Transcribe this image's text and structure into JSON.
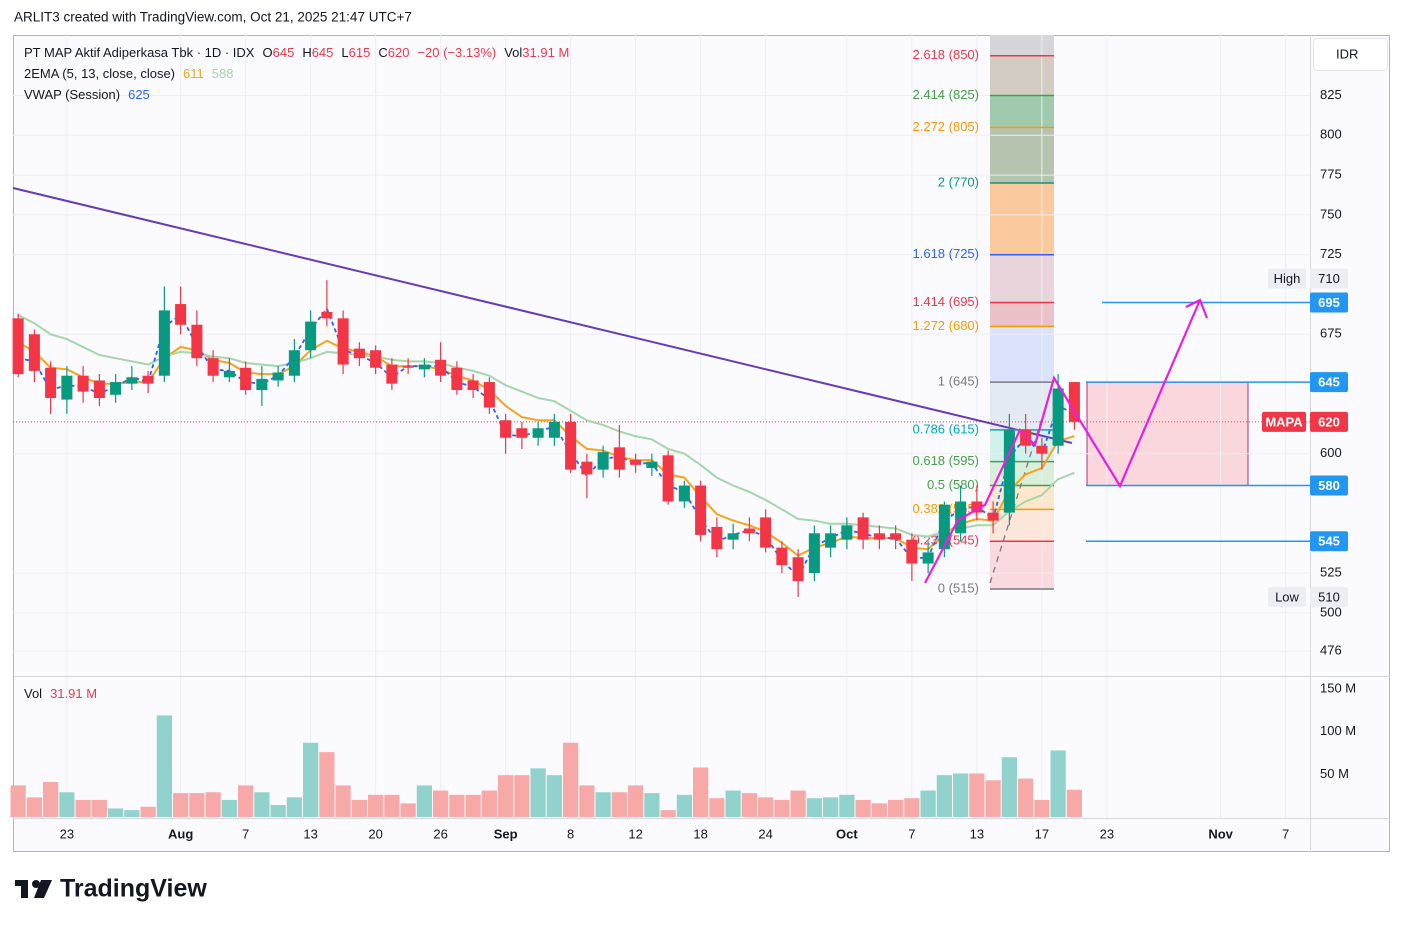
{
  "chart_data": {
    "type": "candlestick",
    "watermark": "ARLIT3 created with TradingView.com, Oct 21, 2025 21:47 UTC+7",
    "brand": "TradingView",
    "currency": "IDR",
    "legend": {
      "symbol": "PT MAP Aktif Adiperkasa Tbk · 1D · IDX",
      "items": [
        {
          "key": "O",
          "value": 645
        },
        {
          "key": "H",
          "value": 645
        },
        {
          "key": "L",
          "value": 615
        },
        {
          "key": "C",
          "value": 620
        }
      ],
      "change": "−20 (−3.13%)",
      "volume_key": "Vol",
      "volume": "31.91 M"
    },
    "up_color": "#089981",
    "down_color": "#f23645",
    "grid": true,
    "ylim": [
      461,
      863
    ],
    "yticks": [
      825,
      800,
      775,
      750,
      725,
      675,
      600,
      525,
      500,
      476
    ],
    "categories": [
      null,
      null,
      null,
      "23",
      null,
      null,
      null,
      null,
      null,
      null,
      "Aug",
      null,
      null,
      null,
      "7",
      null,
      null,
      null,
      "13",
      null,
      null,
      null,
      "20",
      null,
      null,
      null,
      "26",
      null,
      null,
      null,
      "Sep",
      null,
      null,
      null,
      "8",
      null,
      null,
      null,
      "12",
      null,
      null,
      null,
      "18",
      null,
      null,
      null,
      "24",
      null,
      null,
      null,
      null,
      "Oct",
      null,
      null,
      null,
      "7",
      null,
      null,
      null,
      "13",
      null,
      null,
      null,
      "17",
      null,
      null,
      null,
      "23",
      null,
      null,
      null,
      null,
      null,
      null,
      "Nov",
      null,
      null,
      null,
      "7",
      null
    ],
    "ohlc": {
      "open": [
        685,
        675,
        654,
        634,
        649,
        646,
        637,
        644,
        649,
        649,
        694,
        681,
        660,
        648,
        654,
        640,
        646,
        649,
        665,
        689,
        685,
        666,
        665,
        656,
        655,
        653,
        659,
        654,
        646,
        645,
        621,
        616,
        610,
        610,
        620,
        595,
        590,
        604,
        596,
        591,
        599,
        570,
        580,
        554,
        546,
        553,
        560,
        541,
        535,
        525,
        541,
        546,
        560,
        550,
        550,
        546,
        531,
        540,
        550,
        570,
        563,
        563,
        615,
        605,
        605,
        645,
        null,
        null,
        null,
        null,
        null,
        null,
        null,
        null,
        null,
        null,
        null,
        null,
        null,
        null
      ],
      "high": [
        688,
        678,
        658,
        655,
        655,
        650,
        650,
        655,
        652,
        705,
        705,
        690,
        665,
        660,
        658,
        655,
        655,
        672,
        690,
        709,
        690,
        670,
        668,
        660,
        660,
        660,
        670,
        658,
        650,
        648,
        625,
        620,
        620,
        625,
        625,
        600,
        605,
        618,
        600,
        600,
        602,
        583,
        583,
        560,
        556,
        560,
        565,
        545,
        540,
        555,
        555,
        560,
        563,
        555,
        555,
        550,
        545,
        570,
        580,
        580,
        570,
        625,
        625,
        610,
        650,
        645,
        null,
        null,
        null,
        null,
        null,
        null,
        null,
        null,
        null,
        null,
        null,
        null,
        null,
        null
      ],
      "low": [
        648,
        645,
        625,
        625,
        632,
        630,
        632,
        640,
        638,
        645,
        675,
        655,
        645,
        645,
        637,
        630,
        642,
        645,
        660,
        680,
        650,
        655,
        650,
        640,
        650,
        648,
        645,
        637,
        635,
        625,
        600,
        603,
        605,
        605,
        588,
        572,
        585,
        585,
        588,
        586,
        568,
        566,
        545,
        535,
        540,
        545,
        538,
        525,
        510,
        520,
        535,
        540,
        540,
        540,
        540,
        520,
        525,
        535,
        545,
        558,
        550,
        555,
        600,
        590,
        600,
        615,
        null,
        null,
        null,
        null,
        null,
        null,
        null,
        null,
        null,
        null,
        null,
        null,
        null,
        null
      ],
      "close": [
        650,
        652,
        635,
        649,
        639,
        635,
        645,
        648,
        644,
        690,
        681,
        660,
        649,
        652,
        640,
        647,
        651,
        665,
        683,
        685,
        656,
        660,
        654,
        644,
        654,
        656,
        649,
        640,
        640,
        629,
        610,
        610,
        616,
        620,
        590,
        587,
        601,
        590,
        593,
        595,
        570,
        580,
        549,
        540,
        550,
        550,
        541,
        530,
        520,
        550,
        550,
        555,
        546,
        546,
        546,
        531,
        538,
        568,
        570,
        563,
        558,
        615,
        605,
        600,
        641,
        620,
        null,
        null,
        null,
        null,
        null,
        null,
        null,
        null,
        null,
        null,
        null,
        null,
        null,
        null
      ]
    },
    "volume": {
      "name": "Vol",
      "up_color": "#92d2cc",
      "down_color": "#f7a9a7",
      "ylim": [
        0,
        164
      ],
      "yticks": [
        {
          "value": 150,
          "label": "150 M"
        },
        {
          "value": 100,
          "label": "100 M"
        },
        {
          "value": 50,
          "label": "50 M"
        }
      ],
      "values": [
        37,
        23,
        41,
        29,
        20,
        20,
        10,
        8,
        12,
        119,
        28,
        28,
        29,
        20,
        37,
        29,
        14,
        23,
        87,
        76,
        37,
        20,
        26,
        26,
        16,
        37,
        31,
        26,
        26,
        31,
        49,
        49,
        57,
        49,
        87,
        37,
        29,
        29,
        37,
        28,
        8,
        26,
        58,
        22,
        31,
        28,
        23,
        20,
        31,
        22,
        23,
        26,
        20,
        16,
        20,
        22,
        31,
        49,
        51,
        51,
        43,
        70,
        45,
        20,
        78,
        31.91,
        null,
        null,
        null,
        null,
        null,
        null,
        null,
        null,
        null,
        null,
        null,
        null,
        null,
        null
      ]
    },
    "indicators": [
      {
        "name": "2EMA (5, 13, close, close)",
        "lines": [
          {
            "color": "#f7a21b",
            "last": 611,
            "values": [
              670,
              664,
              654,
              653,
              648,
              644,
              644,
              645,
              645,
              660,
              667,
              665,
              659,
              657,
              651,
              650,
              650,
              655,
              665,
              671,
              666,
              664,
              661,
              655,
              655,
              655,
              653,
              649,
              646,
              640,
              630,
              623,
              621,
              621,
              611,
              603,
              602,
              598,
              596,
              596,
              587,
              585,
              573,
              562,
              558,
              555,
              551,
              544,
              536,
              541,
              544,
              548,
              547,
              547,
              547,
              541,
              540,
              550,
              556,
              559,
              558,
              577,
              587,
              591,
              608,
              611,
              null,
              null,
              null,
              null,
              null,
              null,
              null,
              null,
              null,
              null,
              null,
              null,
              null,
              null
            ]
          },
          {
            "color": "#a5d6a7",
            "last": 588,
            "values": [
              687,
              682,
              675,
              672,
              667,
              662,
              660,
              658,
              656,
              661,
              664,
              663,
              661,
              660,
              657,
              656,
              655,
              657,
              660,
              664,
              663,
              662,
              661,
              659,
              658,
              658,
              657,
              654,
              652,
              649,
              643,
              639,
              635,
              633,
              627,
              621,
              618,
              614,
              611,
              609,
              603,
              600,
              593,
              585,
              580,
              576,
              571,
              565,
              559,
              558,
              556,
              556,
              555,
              554,
              553,
              549,
              548,
              551,
              553,
              555,
              555,
              564,
              570,
              574,
              584,
              588,
              null,
              null,
              null,
              null,
              null,
              null,
              null,
              null,
              null,
              null,
              null,
              null,
              null,
              null
            ]
          }
        ]
      },
      {
        "name": "VWAP (Session)",
        "dashed": true,
        "lines": [
          {
            "color": "#2962ff",
            "last": 625,
            "values": [
              660,
              658,
              640,
              643,
              642,
              638,
              642,
              648,
              645,
              680,
              687,
              668,
              653,
              652,
              645,
              644,
              649,
              661,
              678,
              691,
              665,
              662,
              657,
              648,
              655,
              655,
              655,
              645,
              642,
              634,
              612,
              611,
              614,
              617,
              601,
              586,
              597,
              598,
              594,
              594,
              580,
              576,
              559,
              545,
              549,
              552,
              548,
              533,
              523,
              542,
              547,
              552,
              550,
              547,
              547,
              534,
              535,
              558,
              565,
              567,
              559,
              598,
              610,
              600,
              630,
              625,
              null,
              null,
              null,
              null,
              null,
              null,
              null,
              null,
              null,
              null,
              null,
              null,
              null,
              null
            ]
          }
        ]
      }
    ],
    "fib": [
      {
        "label": "2.618 (850)",
        "value": 850,
        "color": "#f23645",
        "fill": "#cbc3b8"
      },
      {
        "label": "2.414 (825)",
        "value": 825,
        "color": "#43a047",
        "fill": "#8fc19f"
      },
      {
        "label": "2.272 (805)",
        "value": 805,
        "color": "#ff9800",
        "fill": "#a9b8a0"
      },
      {
        "label": "2 (770)",
        "value": 770,
        "color": "#089981",
        "fill": "#f9bf8d"
      },
      {
        "label": "1.618 (725)",
        "value": 725,
        "color": "#2962ff",
        "fill": "#e6ccd6"
      },
      {
        "label": "1.414 (695)",
        "value": 695,
        "color": "#f23645",
        "fill": "#e7b7be"
      },
      {
        "label": "1.272 (680)",
        "value": 680,
        "color": "#ff9800",
        "fill": "#d5defc"
      },
      {
        "label": "1 (645)",
        "value": 645,
        "color": "#787b86",
        "fill": "#dfe6ee"
      },
      {
        "label": "0.786 (615)",
        "value": 615,
        "color": "#00acc1",
        "fill": "#c9eee7"
      },
      {
        "label": "0.618 (595)",
        "value": 595,
        "color": "#43a047",
        "fill": "#d4ecd5"
      },
      {
        "label": "0.5 (580)",
        "value": 580,
        "color": "#43a047",
        "fill": "#fde4c6"
      },
      {
        "label": "0.382 (565)",
        "value": 565,
        "color": "#ff9800",
        "fill": "#fde3d3"
      },
      {
        "label": "0.236 (545)",
        "value": 545,
        "color": "#f23645",
        "fill": "#f9d3d8"
      },
      {
        "label": "0 (515)",
        "value": 515,
        "color": "#787b86"
      }
    ],
    "price_labels": [
      {
        "name": "High",
        "value": 710,
        "color": "#eceef3",
        "text_color": "#131722"
      },
      {
        "value": 695,
        "color": "#2196f3",
        "text_color": "#ffffff",
        "line": true
      },
      {
        "value": 645,
        "color": "#2196f3",
        "text_color": "#ffffff",
        "line": true
      },
      {
        "name": "MAPA",
        "value": 620,
        "color": "#f23645",
        "text_color": "#ffffff",
        "price_line": true
      },
      {
        "value": 580,
        "color": "#2196f3",
        "text_color": "#ffffff",
        "line": true
      },
      {
        "value": 545,
        "color": "#2196f3",
        "text_color": "#ffffff",
        "line": true
      },
      {
        "name": "Low",
        "value": 510,
        "color": "#eceef3",
        "text_color": "#131722"
      }
    ]
  }
}
